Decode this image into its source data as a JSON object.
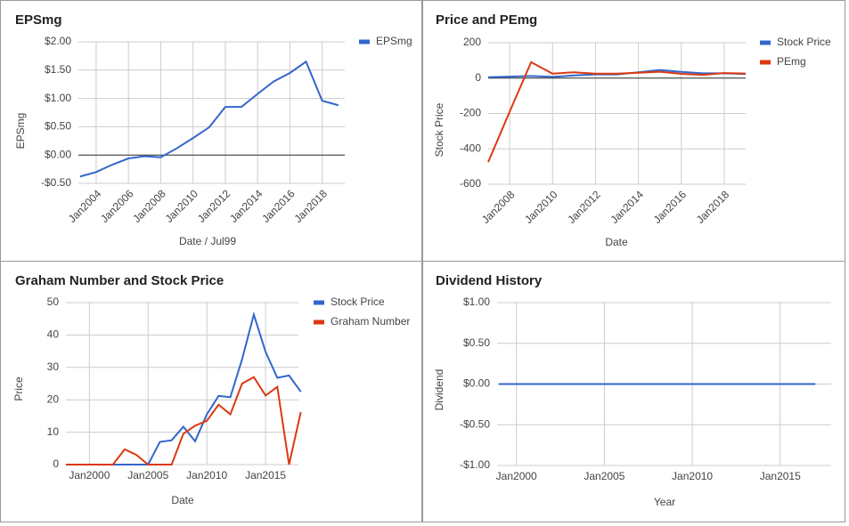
{
  "chart_data": [
    {
      "type": "line",
      "title": "EPSmg",
      "x_label": "Date / Jul99",
      "y_label": "EPSmg",
      "x": [
        2003,
        2004,
        2005,
        2006,
        2007,
        2008,
        2009,
        2010,
        2011,
        2012,
        2013,
        2014,
        2015,
        2016,
        2017,
        2018,
        2019
      ],
      "series": [
        {
          "name": "EPSmg",
          "color": "#3366cc",
          "values": [
            -0.38,
            -0.3,
            -0.17,
            -0.06,
            -0.02,
            -0.04,
            0.12,
            0.3,
            0.49,
            0.85,
            0.85,
            1.08,
            1.3,
            1.45,
            1.65,
            0.96,
            0.88
          ]
        }
      ],
      "xlim": [
        2002.9,
        2019.4
      ],
      "ylim": [
        -0.5,
        2.0
      ],
      "xticks": [
        {
          "value": 2004,
          "label": "Jan2004"
        },
        {
          "value": 2006,
          "label": "Jan2006"
        },
        {
          "value": 2008,
          "label": "Jan2008"
        },
        {
          "value": 2010,
          "label": "Jan2010"
        },
        {
          "value": 2012,
          "label": "Jan2012"
        },
        {
          "value": 2014,
          "label": "Jan2014"
        },
        {
          "value": 2016,
          "label": "Jan2016"
        },
        {
          "value": 2018,
          "label": "Jan2018"
        }
      ],
      "yticks": [
        {
          "value": -0.5,
          "label": "-$0.50"
        },
        {
          "value": 0,
          "label": "$0.00"
        },
        {
          "value": 0.5,
          "label": "$0.50"
        },
        {
          "value": 1.0,
          "label": "$1.00"
        },
        {
          "value": 1.5,
          "label": "$1.50"
        },
        {
          "value": 2.0,
          "label": "$2.00"
        }
      ],
      "grid": true,
      "zero_line": true,
      "legend": "right"
    },
    {
      "type": "line",
      "title": "Price and PEmg",
      "x_label": "Date",
      "y_label": "Stock Price",
      "x": [
        2007,
        2008,
        2009,
        2010,
        2011,
        2012,
        2013,
        2014,
        2015,
        2016,
        2017,
        2018,
        2019
      ],
      "series": [
        {
          "name": "Stock Price",
          "color": "#3366cc",
          "values": [
            5,
            8,
            12,
            7,
            15,
            21,
            21,
            33,
            46,
            35,
            27,
            27,
            23
          ]
        },
        {
          "name": "PEmg",
          "color": "#dc3912",
          "values": [
            -475,
            -190,
            90,
            25,
            33,
            25,
            25,
            30,
            36,
            24,
            18,
            28,
            26
          ]
        }
      ],
      "xlim": [
        2007,
        2019
      ],
      "ylim": [
        -600,
        200
      ],
      "xticks": [
        {
          "value": 2008,
          "label": "Jan2008"
        },
        {
          "value": 2010,
          "label": "Jan2010"
        },
        {
          "value": 2012,
          "label": "Jan2012"
        },
        {
          "value": 2014,
          "label": "Jan2014"
        },
        {
          "value": 2016,
          "label": "Jan2016"
        },
        {
          "value": 2018,
          "label": "Jan2018"
        }
      ],
      "yticks": [
        -600,
        -400,
        -200,
        0,
        200
      ],
      "grid": true,
      "zero_line": true,
      "legend": "right"
    },
    {
      "type": "line",
      "title": "Graham Number and Stock Price",
      "x_label": "Date",
      "y_label": "Price",
      "x": [
        1998,
        1999,
        2000,
        2001,
        2002,
        2003,
        2004,
        2005,
        2006,
        2007,
        2008,
        2009,
        2010,
        2011,
        2012,
        2013,
        2014,
        2015,
        2016,
        2017,
        2018
      ],
      "series": [
        {
          "name": "Stock Price",
          "color": "#3366cc",
          "values": [
            0,
            0,
            0,
            0,
            0,
            0,
            0,
            0,
            7,
            7.5,
            11.7,
            7.2,
            15.5,
            21.2,
            20.8,
            32.5,
            46.3,
            34.8,
            26.8,
            27.5,
            22.5
          ]
        },
        {
          "name": "Graham Number",
          "color": "#dc3912",
          "values": [
            0,
            0,
            0,
            0,
            0,
            4.7,
            3.0,
            0,
            0,
            0,
            9.5,
            12,
            13.5,
            18.5,
            15.5,
            25,
            27,
            21.3,
            24,
            0,
            16.2
          ]
        }
      ],
      "xlim": [
        1998,
        2017.8
      ],
      "ylim": [
        0,
        50
      ],
      "xticks": [
        {
          "value": 2000,
          "label": "Jan2000"
        },
        {
          "value": 2005,
          "label": "Jan2005"
        },
        {
          "value": 2010,
          "label": "Jan2010"
        },
        {
          "value": 2015,
          "label": "Jan2015"
        }
      ],
      "yticks": [
        0,
        10,
        20,
        30,
        40,
        50
      ],
      "grid": true,
      "zero_line": false,
      "legend": "right"
    },
    {
      "type": "line",
      "title": "Dividend History",
      "x_label": "Year",
      "y_label": "Dividend",
      "x": [
        1999,
        2000,
        2001,
        2002,
        2003,
        2004,
        2005,
        2006,
        2007,
        2008,
        2009,
        2010,
        2011,
        2012,
        2013,
        2014,
        2015,
        2016,
        2017
      ],
      "series": [
        {
          "color": "#3366cc",
          "values": [
            0,
            0,
            0,
            0,
            0,
            0,
            0,
            0,
            0,
            0,
            0,
            0,
            0,
            0,
            0,
            0,
            0,
            0,
            0
          ]
        }
      ],
      "xlim": [
        1998.9,
        2017.9
      ],
      "ylim": [
        -1.0,
        1.0
      ],
      "xticks": [
        {
          "value": 2000,
          "label": "Jan2000"
        },
        {
          "value": 2005,
          "label": "Jan2005"
        },
        {
          "value": 2010,
          "label": "Jan2010"
        },
        {
          "value": 2015,
          "label": "Jan2015"
        }
      ],
      "yticks": [
        {
          "value": -1.0,
          "label": "-$1.00"
        },
        {
          "value": -0.5,
          "label": "-$0.50"
        },
        {
          "value": 0,
          "label": "$0.00"
        },
        {
          "value": 0.5,
          "label": "$0.50"
        },
        {
          "value": 1.0,
          "label": "$1.00"
        }
      ],
      "grid": true,
      "zero_line": false
    }
  ]
}
